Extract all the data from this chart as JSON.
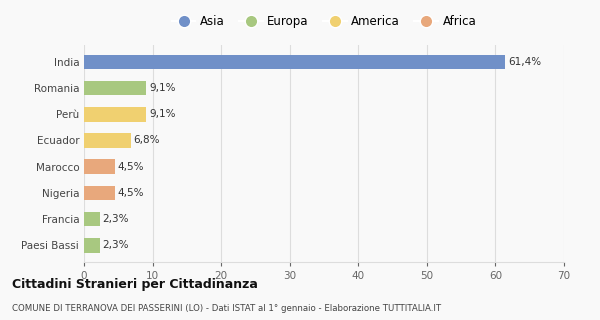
{
  "categories": [
    "Paesi Bassi",
    "Francia",
    "Nigeria",
    "Marocco",
    "Ecuador",
    "Perù",
    "Romania",
    "India"
  ],
  "values": [
    2.3,
    2.3,
    4.5,
    4.5,
    6.8,
    9.1,
    9.1,
    61.4
  ],
  "colors": [
    "#a8c880",
    "#a8c880",
    "#e8a87c",
    "#e8a87c",
    "#f0d070",
    "#f0d070",
    "#a8c880",
    "#7090c8"
  ],
  "labels": [
    "2,3%",
    "2,3%",
    "4,5%",
    "4,5%",
    "6,8%",
    "9,1%",
    "9,1%",
    "61,4%"
  ],
  "legend": [
    {
      "label": "Asia",
      "color": "#7090c8"
    },
    {
      "label": "Europa",
      "color": "#a8c880"
    },
    {
      "label": "America",
      "color": "#f0d070"
    },
    {
      "label": "Africa",
      "color": "#e8a87c"
    }
  ],
  "xlim": [
    0,
    70
  ],
  "xticks": [
    0,
    10,
    20,
    30,
    40,
    50,
    60,
    70
  ],
  "title": "Cittadini Stranieri per Cittadinanza",
  "subtitle": "COMUNE DI TERRANOVA DEI PASSERINI (LO) - Dati ISTAT al 1° gennaio - Elaborazione TUTTITALIA.IT",
  "background_color": "#f9f9f9",
  "grid_color": "#dddddd",
  "bar_height": 0.55
}
